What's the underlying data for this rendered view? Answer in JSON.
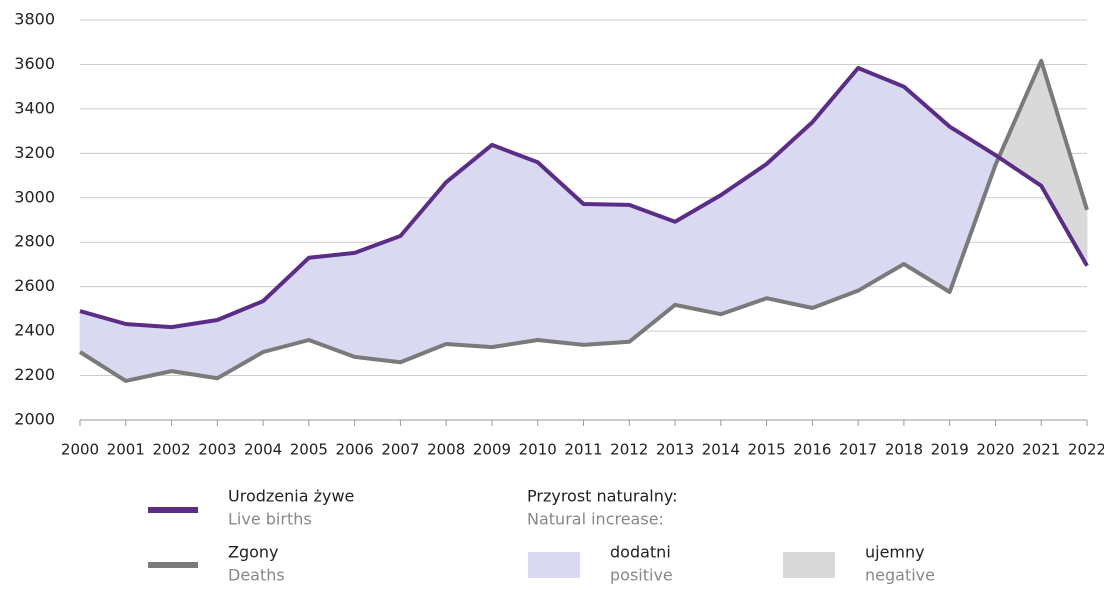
{
  "chart_data": {
    "type": "line",
    "categories": [
      "2000",
      "2001",
      "2002",
      "2003",
      "2004",
      "2005",
      "2006",
      "2007",
      "2008",
      "2009",
      "2010",
      "2011",
      "2012",
      "2013",
      "2014",
      "2015",
      "2016",
      "2017",
      "2018",
      "2019",
      "2020",
      "2021",
      "2022"
    ],
    "series": [
      {
        "name": "Urodzenia żywe",
        "name_en": "Live births",
        "color": "#5b2d86",
        "values": [
          2490,
          2432,
          2418,
          2450,
          2535,
          2730,
          2752,
          2828,
          3070,
          3238,
          3160,
          2972,
          2968,
          2892,
          3012,
          3152,
          3340,
          3584,
          3500,
          3320,
          3192,
          3054,
          2694
        ]
      },
      {
        "name": "Zgony",
        "name_en": "Deaths",
        "color": "#7a7a7a",
        "values": [
          2306,
          2176,
          2220,
          2188,
          2306,
          2360,
          2284,
          2260,
          2342,
          2328,
          2360,
          2338,
          2352,
          2518,
          2476,
          2548,
          2504,
          2582,
          2702,
          2576,
          3148,
          3616,
          2946
        ]
      }
    ],
    "fill_legend": {
      "title": "Przyrost naturalny:",
      "title_en": "Natural increase:",
      "positive": {
        "name": "dodatni",
        "name_en": "positive",
        "color": "#d9d9f1"
      },
      "negative": {
        "name": "ujemny",
        "name_en": "negative",
        "color": "#d9d9d9"
      }
    },
    "ylim": [
      2000,
      3800
    ],
    "yticks": [
      2000,
      2200,
      2400,
      2600,
      2800,
      3000,
      3200,
      3400,
      3600,
      3800
    ],
    "grid": true
  }
}
